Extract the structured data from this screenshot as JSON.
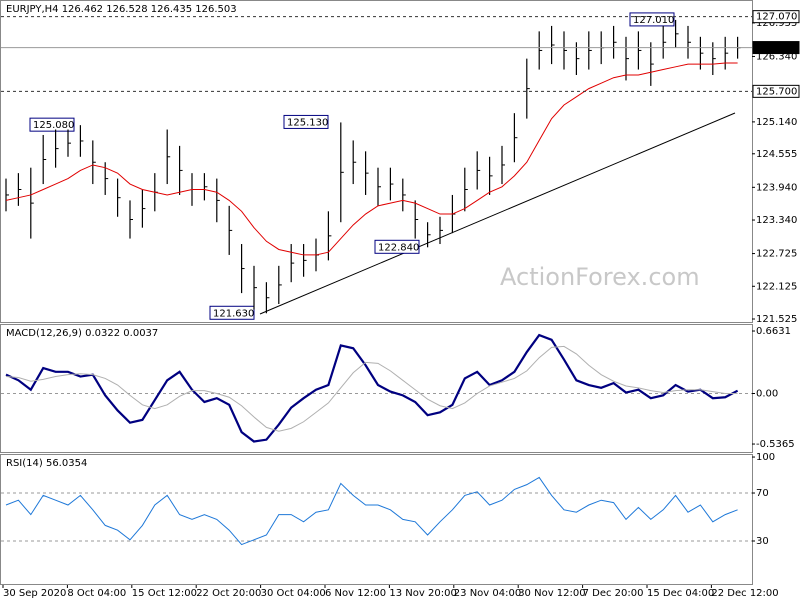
{
  "chart_data": [
    {
      "type": "hilo",
      "title": "EURJPY,H4  126.462 126.528 126.435 126.503",
      "color": "#000000",
      "high": [
        124.1,
        124.2,
        124.3,
        124.9,
        125.0,
        125.0,
        125.08,
        124.8,
        124.4,
        124.1,
        123.7,
        123.9,
        124.2,
        125.0,
        124.7,
        124.2,
        124.2,
        124.1,
        123.6,
        122.9,
        122.5,
        122.2,
        122.5,
        122.9,
        122.9,
        123.0,
        123.5,
        125.13,
        124.8,
        124.6,
        124.3,
        124.3,
        124.1,
        123.7,
        123.3,
        123.4,
        123.8,
        124.3,
        124.6,
        124.5,
        124.7,
        125.3,
        126.3,
        126.8,
        126.9,
        126.8,
        126.6,
        126.8,
        126.8,
        126.9,
        126.7,
        126.8,
        126.6,
        126.9,
        127.01,
        126.9,
        126.7,
        126.6,
        126.7,
        126.7
      ],
      "low": [
        123.5,
        123.6,
        123.0,
        124.0,
        124.3,
        124.5,
        124.5,
        124.0,
        123.8,
        123.4,
        123.0,
        123.2,
        123.5,
        124.0,
        123.8,
        123.6,
        123.7,
        123.3,
        122.7,
        122.0,
        121.7,
        121.63,
        121.8,
        122.2,
        122.3,
        122.4,
        122.6,
        123.3,
        124.0,
        123.8,
        123.6,
        123.7,
        123.5,
        123.0,
        122.84,
        122.9,
        123.1,
        123.5,
        123.9,
        123.8,
        124.0,
        124.4,
        125.2,
        126.1,
        126.2,
        126.1,
        126.0,
        126.1,
        126.2,
        126.3,
        125.9,
        126.1,
        125.8,
        126.3,
        126.5,
        126.3,
        126.1,
        126.0,
        126.1,
        126.3
      ],
      "overlay": {
        "color": "#e00000",
        "values": [
          123.7,
          123.75,
          123.8,
          123.9,
          124.0,
          124.1,
          124.25,
          124.35,
          124.3,
          124.2,
          124.0,
          123.9,
          123.85,
          123.8,
          123.85,
          123.9,
          123.9,
          123.85,
          123.7,
          123.5,
          123.2,
          122.95,
          122.8,
          122.75,
          122.7,
          122.7,
          122.75,
          123.0,
          123.25,
          123.45,
          123.6,
          123.65,
          123.7,
          123.65,
          123.55,
          123.45,
          123.45,
          123.55,
          123.7,
          123.85,
          123.95,
          124.15,
          124.4,
          124.8,
          125.2,
          125.45,
          125.6,
          125.75,
          125.85,
          125.95,
          126.0,
          126.0,
          126.05,
          126.1,
          126.15,
          126.2,
          126.2,
          126.2,
          126.22,
          126.22
        ]
      },
      "ylim": [
        121.47,
        127.357
      ],
      "yticks": [
        126.955,
        {
          "value": 126.34,
          "label": "126.340"
        },
        {
          "value": 125.14,
          "label": "125.140"
        },
        124.555,
        {
          "value": 123.94,
          "label": "123.940"
        },
        {
          "value": 123.34,
          "label": "123.340"
        },
        122.725,
        122.125,
        121.525
      ],
      "levels": [
        {
          "value": 127.07,
          "label": "127.070",
          "style": "dashed"
        },
        {
          "value": 126.503,
          "label": "126.503",
          "style": "solid"
        },
        {
          "value": 125.7,
          "label": "125.700",
          "style": "dashed"
        }
      ],
      "annotations": [
        {
          "value": 125.08,
          "label": "125.080"
        },
        {
          "value": 125.13,
          "label": "125.130"
        },
        {
          "value": 121.63,
          "label": "121.630"
        },
        {
          "value": 122.84,
          "label": "122.840"
        },
        {
          "value": 127.01,
          "label": "127.010"
        }
      ],
      "watermark": "ActionForex.com"
    },
    {
      "type": "line",
      "title": "MACD(12,26,9) 0.0322 0.0037",
      "series": [
        {
          "color": "#000080",
          "width": 2.2,
          "values": [
            0.2,
            0.14,
            0.04,
            0.27,
            0.23,
            0.23,
            0.18,
            0.2,
            -0.02,
            -0.18,
            -0.31,
            -0.28,
            -0.07,
            0.14,
            0.23,
            0.04,
            -0.09,
            -0.05,
            -0.12,
            -0.41,
            -0.51,
            -0.49,
            -0.33,
            -0.15,
            -0.05,
            0.04,
            0.09,
            0.51,
            0.48,
            0.3,
            0.09,
            0.02,
            -0.02,
            -0.09,
            -0.23,
            -0.2,
            -0.12,
            0.16,
            0.23,
            0.09,
            0.14,
            0.23,
            0.44,
            0.62,
            0.57,
            0.36,
            0.14,
            0.09,
            0.06,
            0.11,
            0.01,
            0.04,
            -0.05,
            -0.02,
            0.09,
            0.02,
            0.04,
            -0.05,
            -0.04,
            0.03
          ]
        },
        {
          "color": "#b0b0b0",
          "width": 1,
          "values": [
            0.18,
            0.17,
            0.13,
            0.15,
            0.18,
            0.2,
            0.21,
            0.2,
            0.16,
            0.09,
            -0.02,
            -0.12,
            -0.16,
            -0.12,
            -0.03,
            0.03,
            0.03,
            0.0,
            -0.04,
            -0.13,
            -0.25,
            -0.36,
            -0.4,
            -0.37,
            -0.3,
            -0.2,
            -0.1,
            0.06,
            0.22,
            0.33,
            0.32,
            0.24,
            0.14,
            0.04,
            -0.06,
            -0.13,
            -0.16,
            -0.1,
            0.0,
            0.08,
            0.12,
            0.16,
            0.24,
            0.38,
            0.49,
            0.5,
            0.42,
            0.3,
            0.2,
            0.13,
            0.08,
            0.06,
            0.03,
            0.01,
            0.03,
            0.04,
            0.04,
            0.02,
            0.0,
            0.0
          ]
        }
      ],
      "ylim": [
        -0.621,
        0.727
      ],
      "yticks": [
        0.6631,
        {
          "value": 0,
          "label": "0.00"
        },
        -0.5365
      ],
      "levels": [
        0
      ]
    },
    {
      "type": "line",
      "title": "RSI(14) 56.0354",
      "series": [
        {
          "color": "#1e78d8",
          "width": 1,
          "values": [
            60,
            64,
            52,
            68,
            64,
            60,
            68,
            56,
            43,
            39,
            31,
            43,
            60,
            68,
            52,
            48,
            52,
            48,
            39,
            27,
            31,
            35,
            52,
            52,
            46,
            54,
            56,
            78,
            68,
            60,
            60,
            56,
            48,
            46,
            35,
            46,
            56,
            68,
            71,
            60,
            64,
            73,
            77,
            83,
            68,
            56,
            54,
            60,
            64,
            62,
            48,
            58,
            48,
            56,
            68,
            54,
            60,
            46,
            52,
            56
          ]
        }
      ],
      "ylim": [
        -6.7,
        101.7
      ],
      "yticks": [
        100,
        70,
        30
      ],
      "levels": [
        70,
        30
      ]
    }
  ],
  "x_axis": {
    "labels": [
      "30 Sep 2020",
      "8 Oct 04:00",
      "15 Oct 12:00",
      "22 Oct 20:00",
      "30 Oct 04:00",
      "6 Nov 12:00",
      "13 Nov 20:00",
      "23 Nov 04:00",
      "30 Nov 12:00",
      "7 Dec 20:00",
      "15 Dec 04:00",
      "22 Dec 12:00"
    ]
  }
}
